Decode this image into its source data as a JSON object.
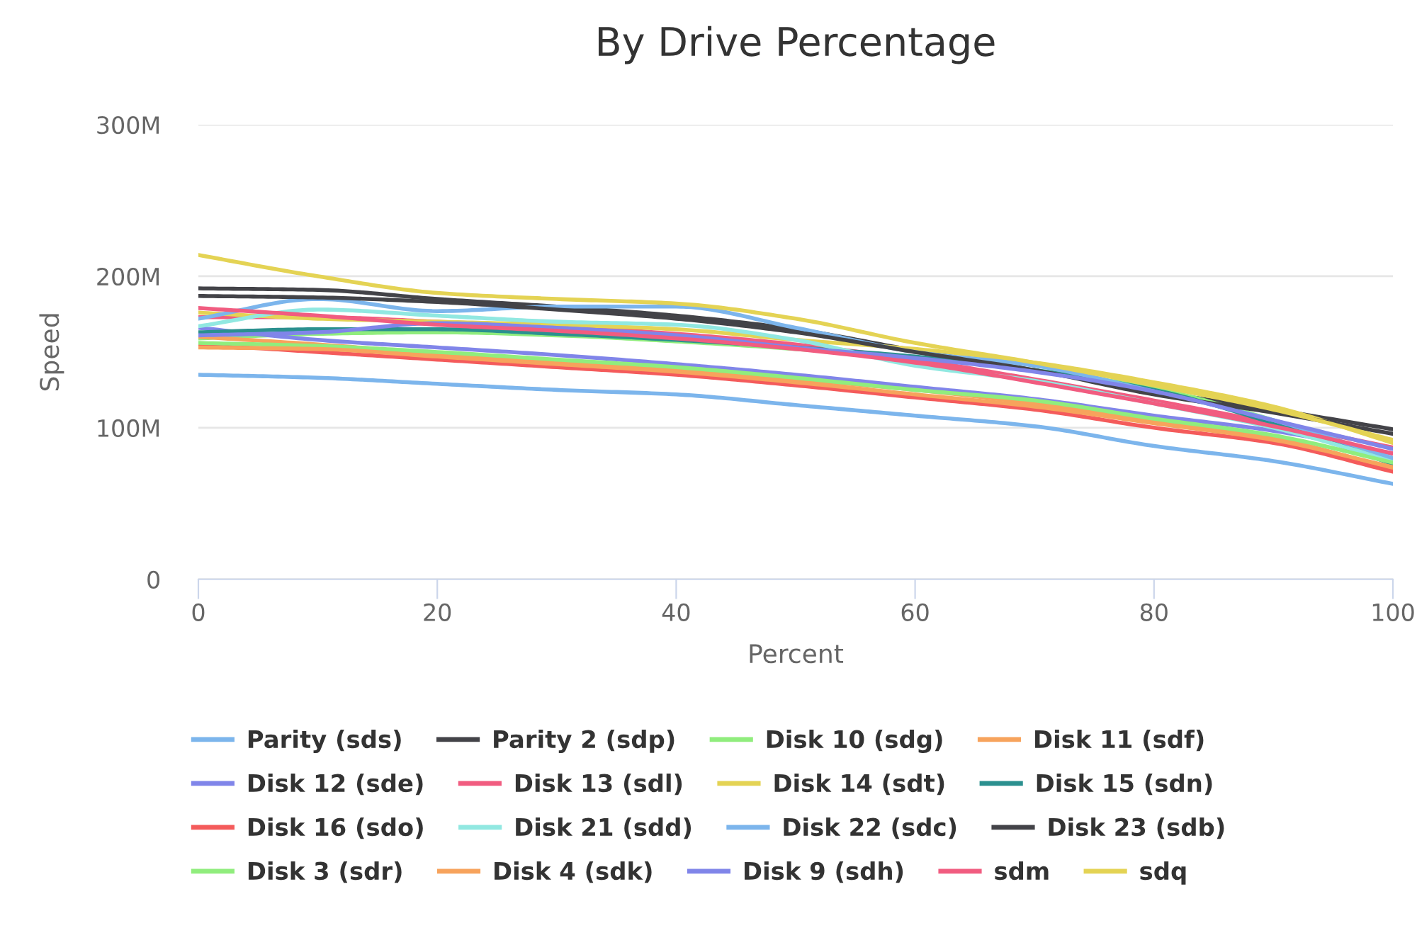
{
  "chart_data": {
    "type": "line",
    "title": "By Drive Percentage",
    "xlabel": "Percent",
    "ylabel": "Speed",
    "x": [
      0,
      10,
      20,
      30,
      40,
      50,
      60,
      70,
      80,
      90,
      100
    ],
    "xlim": [
      0,
      100
    ],
    "xticks": [
      0,
      20,
      40,
      60,
      80,
      100
    ],
    "ylim": [
      0,
      300
    ],
    "yticks": [
      0,
      {
        "value": 100,
        "label": "100M"
      },
      {
        "value": 200,
        "label": "200M"
      },
      {
        "value": 300,
        "label": "300M"
      }
    ],
    "grid": "y",
    "legend": "bottom",
    "marker": "none",
    "line_style": "solid",
    "series": [
      {
        "name": "Parity (sds)",
        "color": "#7cb5ec",
        "values": [
          135,
          133,
          129,
          125,
          122,
          115,
          108,
          101,
          88,
          78,
          63
        ]
      },
      {
        "name": "Parity 2 (sdp)",
        "color": "#434348",
        "values": [
          192,
          191,
          185,
          180,
          174,
          165,
          151,
          138,
          124,
          112,
          99
        ]
      },
      {
        "name": "Disk 10 (sdg)",
        "color": "#90ed7d",
        "values": [
          159,
          162,
          163,
          161,
          157,
          152,
          146,
          138,
          126,
          105,
          79
        ]
      },
      {
        "name": "Disk 11 (sdf)",
        "color": "#f7a35c",
        "values": [
          160,
          155,
          149,
          144,
          139,
          132,
          125,
          116,
          104,
          93,
          73
        ]
      },
      {
        "name": "Disk 12 (sde)",
        "color": "#8085e9",
        "values": [
          166,
          158,
          153,
          148,
          142,
          135,
          127,
          119,
          108,
          98,
          83
        ]
      },
      {
        "name": "Disk 13 (sdl)",
        "color": "#f15c80",
        "values": [
          173,
          173,
          170,
          167,
          162,
          155,
          145,
          132,
          118,
          103,
          87
        ]
      },
      {
        "name": "Disk 14 (sdt)",
        "color": "#e4d354",
        "values": [
          176,
          172,
          170,
          168,
          165,
          158,
          152,
          143,
          130,
          114,
          90
        ]
      },
      {
        "name": "Disk 15 (sdn)",
        "color": "#2b908f",
        "values": [
          163,
          165,
          165,
          162,
          158,
          153,
          147,
          138,
          125,
          103,
          76
        ]
      },
      {
        "name": "Disk 16 (sdo)",
        "color": "#f45b5b",
        "values": [
          155,
          150,
          145,
          140,
          135,
          128,
          120,
          112,
          100,
          90,
          71
        ]
      },
      {
        "name": "Disk 21 (sdd)",
        "color": "#91e8e1",
        "values": [
          167,
          178,
          174,
          170,
          168,
          158,
          141,
          131,
          116,
          100,
          78
        ]
      },
      {
        "name": "Disk 22 (sdc)",
        "color": "#7cb5ec",
        "values": [
          172,
          185,
          177,
          180,
          180,
          166,
          150,
          141,
          124,
          105,
          80
        ]
      },
      {
        "name": "Disk 23 (sdb)",
        "color": "#434348",
        "values": [
          187,
          186,
          183,
          178,
          172,
          163,
          150,
          138,
          122,
          110,
          96
        ]
      },
      {
        "name": "Disk 3 (sdr)",
        "color": "#90ed7d",
        "values": [
          156,
          154,
          150,
          145,
          140,
          133,
          125,
          118,
          106,
          95,
          77
        ]
      },
      {
        "name": "Disk 4 (sdk)",
        "color": "#f7a35c",
        "values": [
          153,
          152,
          147,
          142,
          137,
          130,
          122,
          114,
          103,
          92,
          74
        ]
      },
      {
        "name": "Disk 9 (sdh)",
        "color": "#8085e9",
        "values": [
          161,
          163,
          169,
          166,
          161,
          153,
          146,
          137,
          124,
          105,
          86
        ]
      },
      {
        "name": "sdm",
        "color": "#f15c80",
        "values": [
          179,
          174,
          168,
          164,
          159,
          152,
          143,
          130,
          116,
          101,
          83
        ]
      },
      {
        "name": "sdq",
        "color": "#e4d354",
        "values": [
          214,
          200,
          189,
          185,
          182,
          172,
          156,
          143,
          128,
          112,
          92
        ]
      }
    ]
  }
}
